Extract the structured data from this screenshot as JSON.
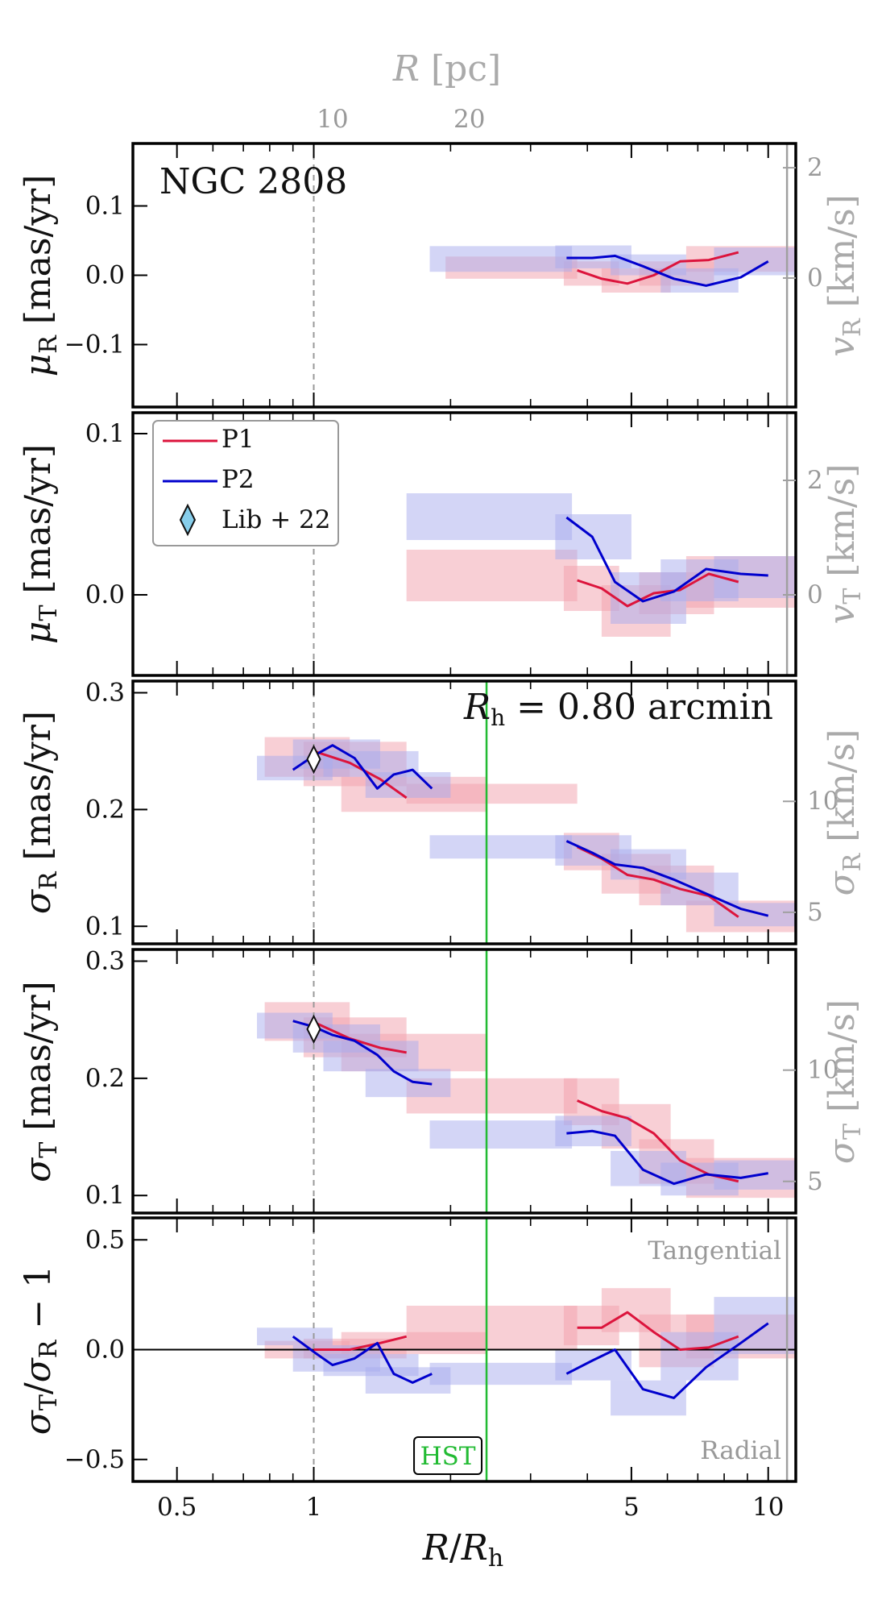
{
  "chart_data": [
    {
      "panel": "mu_R",
      "type": "line",
      "title": "NGC 2808",
      "ylabel": "μ_R [mas/yr]",
      "ylabel_right": "v_R [km/s]",
      "ylim": [
        -0.19,
        0.19
      ],
      "yticks": [
        -0.1,
        0.0,
        0.1
      ],
      "yticklabels": [
        "−0.1",
        "0.0",
        "0.1"
      ],
      "yticks_right": [
        0,
        2
      ],
      "series": [
        {
          "name": "P1",
          "color": "#dc143c",
          "x": [
            3.8,
            4.3,
            4.9,
            5.6,
            6.4,
            7.4,
            8.6
          ],
          "y": [
            0.007,
            -0.005,
            -0.012,
            0.0,
            0.02,
            0.022,
            0.033
          ]
        },
        {
          "name": "P2",
          "color": "#0000cd",
          "x": [
            3.6,
            4.1,
            4.6,
            5.3,
            6.2,
            7.3,
            8.7,
            10.0
          ],
          "y": [
            0.025,
            0.025,
            0.028,
            0.013,
            -0.005,
            -0.015,
            -0.003,
            0.02
          ]
        }
      ],
      "bands": [
        {
          "series": "P1",
          "x0": 1.95,
          "x1": 3.8,
          "y0": -0.005,
          "y1": 0.027
        },
        {
          "series": "P1",
          "x0": 3.55,
          "x1": 4.7,
          "y0": -0.015,
          "y1": 0.02
        },
        {
          "series": "P1",
          "x0": 4.3,
          "x1": 6.1,
          "y0": -0.025,
          "y1": 0.01
        },
        {
          "series": "P1",
          "x0": 5.2,
          "x1": 7.6,
          "y0": -0.015,
          "y1": 0.02
        },
        {
          "series": "P1",
          "x0": 6.6,
          "x1": 12.5,
          "y0": 0.005,
          "y1": 0.042
        },
        {
          "series": "P2",
          "x0": 1.8,
          "x1": 3.7,
          "y0": 0.005,
          "y1": 0.042
        },
        {
          "series": "P2",
          "x0": 3.4,
          "x1": 5.0,
          "y0": 0.01,
          "y1": 0.043
        },
        {
          "series": "P2",
          "x0": 4.5,
          "x1": 6.6,
          "y0": 0.0,
          "y1": 0.03
        },
        {
          "series": "P2",
          "x0": 5.8,
          "x1": 8.6,
          "y0": -0.025,
          "y1": 0.01
        },
        {
          "series": "P2",
          "x0": 7.6,
          "x1": 12.5,
          "y0": 0.0,
          "y1": 0.04
        }
      ]
    },
    {
      "panel": "mu_T",
      "type": "line",
      "ylabel": "μ_T [mas/yr]",
      "ylabel_right": "v_T [km/s]",
      "ylim": [
        -0.05,
        0.113
      ],
      "yticks": [
        0.0,
        0.1
      ],
      "yticklabels": [
        "0.0",
        "0.1"
      ],
      "yticks_right": [
        0,
        2
      ],
      "series": [
        {
          "name": "P1",
          "color": "#dc143c",
          "x": [
            3.8,
            4.3,
            4.9,
            5.6,
            6.4,
            7.4,
            8.6
          ],
          "y": [
            0.009,
            0.004,
            -0.007,
            0.001,
            0.003,
            0.013,
            0.008
          ]
        },
        {
          "name": "P2",
          "color": "#0000cd",
          "x": [
            3.6,
            4.1,
            4.6,
            5.3,
            6.2,
            7.3,
            8.7,
            10.0
          ],
          "y": [
            0.048,
            0.036,
            0.008,
            -0.004,
            0.002,
            0.016,
            0.013,
            0.012
          ]
        }
      ],
      "bands": [
        {
          "series": "P1",
          "x0": 1.6,
          "x1": 3.8,
          "y0": -0.004,
          "y1": 0.028
        },
        {
          "series": "P1",
          "x0": 3.55,
          "x1": 4.7,
          "y0": -0.01,
          "y1": 0.018
        },
        {
          "series": "P1",
          "x0": 4.3,
          "x1": 6.1,
          "y0": -0.026,
          "y1": 0.006
        },
        {
          "series": "P1",
          "x0": 5.2,
          "x1": 7.6,
          "y0": -0.012,
          "y1": 0.014
        },
        {
          "series": "P1",
          "x0": 6.6,
          "x1": 12.5,
          "y0": -0.008,
          "y1": 0.024
        },
        {
          "series": "P2",
          "x0": 1.6,
          "x1": 3.7,
          "y0": 0.034,
          "y1": 0.063
        },
        {
          "series": "P2",
          "x0": 3.4,
          "x1": 5.0,
          "y0": 0.022,
          "y1": 0.05
        },
        {
          "series": "P2",
          "x0": 4.5,
          "x1": 6.6,
          "y0": -0.018,
          "y1": 0.014
        },
        {
          "series": "P2",
          "x0": 5.8,
          "x1": 8.6,
          "y0": -0.004,
          "y1": 0.022
        },
        {
          "series": "P2",
          "x0": 7.6,
          "x1": 12.5,
          "y0": -0.002,
          "y1": 0.024
        }
      ]
    },
    {
      "panel": "sigma_R",
      "type": "line",
      "ylabel": "σ_R [mas/yr]",
      "ylabel_right": "σ_R [km/s]",
      "annotation": "R_h = 0.80 arcmin",
      "ylim": [
        0.085,
        0.31
      ],
      "yticks": [
        0.1,
        0.2,
        0.3
      ],
      "yticklabels": [
        "0.1",
        "0.2",
        "0.3"
      ],
      "yticks_right": [
        5,
        10
      ],
      "series": [
        {
          "name": "P1",
          "color": "#dc143c",
          "x": [
            1.0,
            1.2,
            1.4,
            1.6,
            3.8,
            4.3,
            4.9,
            5.6,
            6.4,
            7.4,
            8.6
          ],
          "y": [
            0.25,
            0.24,
            0.226,
            0.21,
            0.168,
            0.158,
            0.144,
            0.14,
            0.132,
            0.126,
            0.108
          ]
        },
        {
          "name": "P2",
          "color": "#0000cd",
          "x": [
            0.9,
            1.0,
            1.1,
            1.23,
            1.38,
            1.5,
            1.65,
            1.82,
            3.6,
            4.1,
            4.6,
            5.3,
            6.2,
            7.3,
            8.7,
            10.0
          ],
          "y": [
            0.234,
            0.246,
            0.255,
            0.244,
            0.218,
            0.23,
            0.234,
            0.218,
            0.173,
            0.163,
            0.153,
            0.15,
            0.14,
            0.128,
            0.115,
            0.109
          ]
        }
      ],
      "bands": [
        {
          "series": "P1",
          "x0": 0.78,
          "x1": 1.2,
          "y0": 0.228,
          "y1": 0.262
        },
        {
          "series": "P1",
          "x0": 0.95,
          "x1": 1.6,
          "y0": 0.22,
          "y1": 0.258
        },
        {
          "series": "P1",
          "x0": 1.15,
          "x1": 2.4,
          "y0": 0.198,
          "y1": 0.228
        },
        {
          "series": "P1",
          "x0": 1.6,
          "x1": 3.8,
          "y0": 0.205,
          "y1": 0.222
        },
        {
          "series": "P1",
          "x0": 3.55,
          "x1": 4.7,
          "y0": 0.148,
          "y1": 0.18
        },
        {
          "series": "P1",
          "x0": 4.3,
          "x1": 6.1,
          "y0": 0.128,
          "y1": 0.162
        },
        {
          "series": "P1",
          "x0": 5.2,
          "x1": 7.6,
          "y0": 0.118,
          "y1": 0.152
        },
        {
          "series": "P1",
          "x0": 6.6,
          "x1": 12.5,
          "y0": 0.095,
          "y1": 0.122
        },
        {
          "series": "P2",
          "x0": 0.75,
          "x1": 1.1,
          "y0": 0.225,
          "y1": 0.246
        },
        {
          "series": "P2",
          "x0": 0.9,
          "x1": 1.4,
          "y0": 0.235,
          "y1": 0.26
        },
        {
          "series": "P2",
          "x0": 1.05,
          "x1": 1.7,
          "y0": 0.228,
          "y1": 0.25
        },
        {
          "series": "P2",
          "x0": 1.3,
          "x1": 2.0,
          "y0": 0.21,
          "y1": 0.232
        },
        {
          "series": "P2",
          "x0": 1.8,
          "x1": 3.7,
          "y0": 0.158,
          "y1": 0.178
        },
        {
          "series": "P2",
          "x0": 3.4,
          "x1": 5.0,
          "y0": 0.152,
          "y1": 0.178
        },
        {
          "series": "P2",
          "x0": 4.5,
          "x1": 6.6,
          "y0": 0.14,
          "y1": 0.166
        },
        {
          "series": "P2",
          "x0": 5.8,
          "x1": 8.6,
          "y0": 0.118,
          "y1": 0.146
        },
        {
          "series": "P2",
          "x0": 7.6,
          "x1": 12.5,
          "y0": 0.1,
          "y1": 0.12
        }
      ],
      "markers": [
        {
          "name": "Lib + 22",
          "x": 1.0,
          "y": 0.243
        }
      ]
    },
    {
      "panel": "sigma_T",
      "type": "line",
      "ylabel": "σ_T [mas/yr]",
      "ylabel_right": "σ_T [km/s]",
      "ylim": [
        0.085,
        0.31
      ],
      "yticks": [
        0.1,
        0.2,
        0.3
      ],
      "yticklabels": [
        "0.1",
        "0.2",
        "0.3"
      ],
      "yticks_right": [
        5,
        10
      ],
      "series": [
        {
          "name": "P1",
          "color": "#dc143c",
          "x": [
            1.0,
            1.2,
            1.4,
            1.6,
            3.8,
            4.3,
            4.9,
            5.6,
            6.4,
            7.4,
            8.6
          ],
          "y": [
            0.248,
            0.234,
            0.226,
            0.222,
            0.181,
            0.172,
            0.166,
            0.153,
            0.13,
            0.118,
            0.112
          ]
        },
        {
          "name": "P2",
          "color": "#0000cd",
          "x": [
            0.9,
            1.0,
            1.1,
            1.23,
            1.38,
            1.5,
            1.65,
            1.82,
            3.6,
            4.1,
            4.6,
            5.3,
            6.2,
            7.3,
            8.7,
            10.0
          ],
          "y": [
            0.249,
            0.244,
            0.237,
            0.232,
            0.22,
            0.206,
            0.197,
            0.195,
            0.153,
            0.155,
            0.151,
            0.122,
            0.11,
            0.118,
            0.115,
            0.119
          ]
        }
      ],
      "bands": [
        {
          "series": "P1",
          "x0": 0.78,
          "x1": 1.2,
          "y0": 0.232,
          "y1": 0.265
        },
        {
          "series": "P1",
          "x0": 0.95,
          "x1": 1.6,
          "y0": 0.218,
          "y1": 0.252
        },
        {
          "series": "P1",
          "x0": 1.15,
          "x1": 2.4,
          "y0": 0.206,
          "y1": 0.238
        },
        {
          "series": "P1",
          "x0": 1.6,
          "x1": 3.8,
          "y0": 0.17,
          "y1": 0.2
        },
        {
          "series": "P1",
          "x0": 3.55,
          "x1": 4.7,
          "y0": 0.16,
          "y1": 0.2
        },
        {
          "series": "P1",
          "x0": 4.3,
          "x1": 6.1,
          "y0": 0.14,
          "y1": 0.178
        },
        {
          "series": "P1",
          "x0": 5.2,
          "x1": 7.6,
          "y0": 0.11,
          "y1": 0.148
        },
        {
          "series": "P1",
          "x0": 6.6,
          "x1": 12.5,
          "y0": 0.098,
          "y1": 0.132
        },
        {
          "series": "P2",
          "x0": 0.75,
          "x1": 1.1,
          "y0": 0.234,
          "y1": 0.256
        },
        {
          "series": "P2",
          "x0": 0.9,
          "x1": 1.4,
          "y0": 0.222,
          "y1": 0.246
        },
        {
          "series": "P2",
          "x0": 1.05,
          "x1": 1.7,
          "y0": 0.206,
          "y1": 0.232
        },
        {
          "series": "P2",
          "x0": 1.3,
          "x1": 2.0,
          "y0": 0.184,
          "y1": 0.208
        },
        {
          "series": "P2",
          "x0": 1.8,
          "x1": 3.7,
          "y0": 0.14,
          "y1": 0.164
        },
        {
          "series": "P2",
          "x0": 3.4,
          "x1": 5.0,
          "y0": 0.142,
          "y1": 0.168
        },
        {
          "series": "P2",
          "x0": 4.5,
          "x1": 6.6,
          "y0": 0.108,
          "y1": 0.138
        },
        {
          "series": "P2",
          "x0": 5.8,
          "x1": 8.6,
          "y0": 0.1,
          "y1": 0.128
        },
        {
          "series": "P2",
          "x0": 7.6,
          "x1": 12.5,
          "y0": 0.105,
          "y1": 0.13
        }
      ],
      "markers": [
        {
          "name": "Lib + 22",
          "x": 1.0,
          "y": 0.242
        }
      ]
    },
    {
      "panel": "ratio",
      "type": "line",
      "ylabel": "σ_T/σ_R − 1",
      "xlabel": "R/R_h",
      "annotations": [
        "Tangential",
        "Radial"
      ],
      "ylim": [
        -0.6,
        0.6
      ],
      "yticks": [
        -0.5,
        0.0,
        0.5
      ],
      "yticklabels": [
        "−0.5",
        "0.0",
        "0.5"
      ],
      "series": [
        {
          "name": "P1",
          "color": "#dc143c",
          "x": [
            1.0,
            1.2,
            1.4,
            1.6,
            3.8,
            4.3,
            4.9,
            5.6,
            6.4,
            7.4,
            8.6
          ],
          "y": [
            0.0,
            0.0,
            0.03,
            0.06,
            0.1,
            0.1,
            0.17,
            0.08,
            0.0,
            0.01,
            0.06
          ]
        },
        {
          "name": "P2",
          "color": "#0000cd",
          "x": [
            0.9,
            1.0,
            1.1,
            1.23,
            1.38,
            1.5,
            1.65,
            1.82,
            3.6,
            4.1,
            4.6,
            5.3,
            6.2,
            7.3,
            8.7,
            10.0
          ],
          "y": [
            0.06,
            -0.01,
            -0.07,
            -0.04,
            0.03,
            -0.11,
            -0.15,
            -0.11,
            -0.11,
            -0.05,
            0.0,
            -0.18,
            -0.22,
            -0.08,
            0.03,
            0.12
          ]
        }
      ],
      "bands": [
        {
          "series": "P1",
          "x0": 0.78,
          "x1": 1.2,
          "y0": -0.04,
          "y1": 0.04
        },
        {
          "series": "P1",
          "x0": 0.95,
          "x1": 1.6,
          "y0": -0.04,
          "y1": 0.05
        },
        {
          "series": "P1",
          "x0": 1.15,
          "x1": 2.4,
          "y0": -0.02,
          "y1": 0.08
        },
        {
          "series": "P1",
          "x0": 1.6,
          "x1": 3.8,
          "y0": 0.0,
          "y1": 0.2
        },
        {
          "series": "P1",
          "x0": 3.55,
          "x1": 4.7,
          "y0": 0.02,
          "y1": 0.2
        },
        {
          "series": "P1",
          "x0": 4.3,
          "x1": 6.1,
          "y0": 0.08,
          "y1": 0.28
        },
        {
          "series": "P1",
          "x0": 5.2,
          "x1": 7.6,
          "y0": -0.08,
          "y1": 0.16
        },
        {
          "series": "P1",
          "x0": 6.6,
          "x1": 12.5,
          "y0": -0.04,
          "y1": 0.16
        },
        {
          "series": "P2",
          "x0": 0.75,
          "x1": 1.1,
          "y0": 0.02,
          "y1": 0.1
        },
        {
          "series": "P2",
          "x0": 0.9,
          "x1": 1.4,
          "y0": -0.1,
          "y1": 0.02
        },
        {
          "series": "P2",
          "x0": 1.05,
          "x1": 1.7,
          "y0": -0.12,
          "y1": -0.02
        },
        {
          "series": "P2",
          "x0": 1.3,
          "x1": 2.0,
          "y0": -0.2,
          "y1": -0.08
        },
        {
          "series": "P2",
          "x0": 1.8,
          "x1": 3.7,
          "y0": -0.16,
          "y1": -0.06
        },
        {
          "series": "P2",
          "x0": 3.4,
          "x1": 5.0,
          "y0": -0.14,
          "y1": 0.0
        },
        {
          "series": "P2",
          "x0": 4.5,
          "x1": 6.6,
          "y0": -0.3,
          "y1": -0.14
        },
        {
          "series": "P2",
          "x0": 5.8,
          "x1": 8.6,
          "y0": -0.14,
          "y1": 0.08
        },
        {
          "series": "P2",
          "x0": 7.6,
          "x1": 12.5,
          "y0": -0.02,
          "y1": 0.24
        }
      ],
      "ref_label": "HST"
    }
  ],
  "x_axis": {
    "scale": "log",
    "xlim": [
      0.4,
      11.5
    ],
    "ticks": [
      0.5,
      1,
      5,
      10
    ],
    "ticklabels": [
      "0.5",
      "1",
      "5",
      "10"
    ],
    "minor_ticks": [
      0.6,
      0.7,
      0.8,
      0.9,
      2,
      3,
      4,
      6,
      7,
      8,
      9
    ],
    "xlabel": "R/R_h",
    "dashed_line_x": 1.0,
    "green_line_x": 2.4,
    "gray_line_x": 11.0
  },
  "top_axis": {
    "label": "R [pc]",
    "ticks": [
      10,
      20
    ],
    "ticklabels": [
      "10",
      "20"
    ],
    "tick_positions_rh": [
      1.1,
      2.2
    ]
  },
  "legend": {
    "placement": "top-left of second panel",
    "entries": [
      {
        "label": "P1",
        "kind": "line",
        "color": "#dc143c"
      },
      {
        "label": "P2",
        "kind": "line",
        "color": "#0000cd"
      },
      {
        "label": "Lib + 22",
        "kind": "diamond",
        "color": "#87ceeb"
      }
    ]
  },
  "colors": {
    "p1": "#dc143c",
    "p2": "#0000cd",
    "p1_band": "#f2a0ac",
    "p2_band": "#a8acee",
    "hst_green": "#22bb33",
    "gray": "#a0a0a0"
  }
}
